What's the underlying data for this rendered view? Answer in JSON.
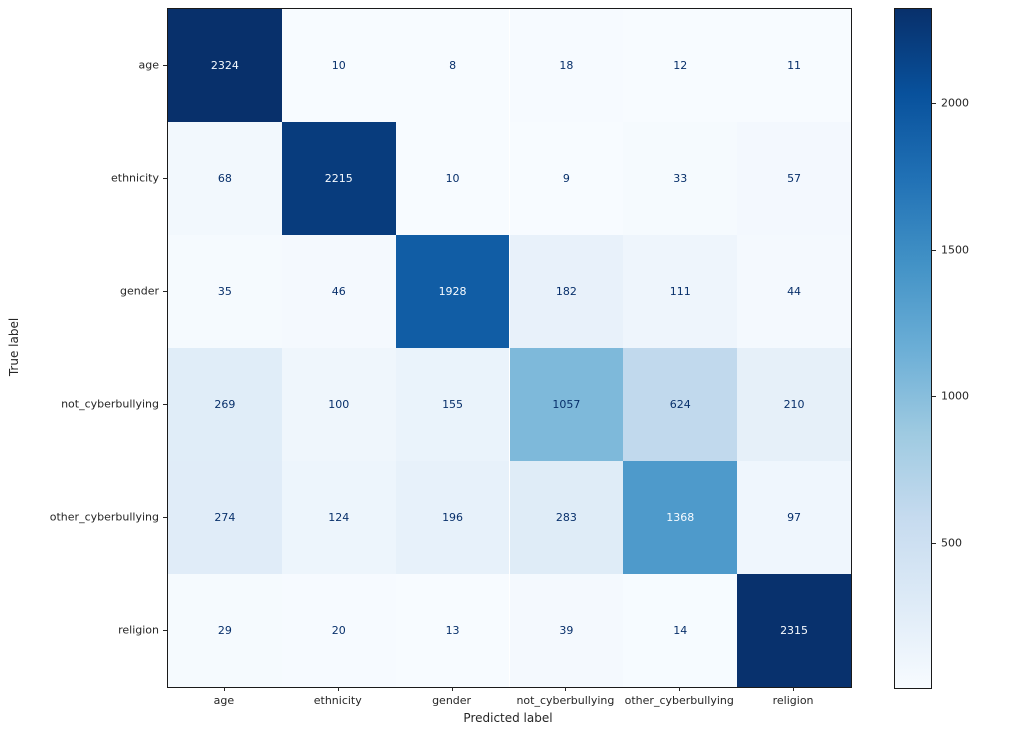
{
  "chart_data": {
    "type": "heatmap",
    "title": "",
    "xlabel": "Predicted label",
    "ylabel": "True label",
    "categories": [
      "age",
      "ethnicity",
      "gender",
      "not_cyberbullying",
      "other_cyberbullying",
      "religion"
    ],
    "matrix": [
      [
        2324,
        10,
        8,
        18,
        12,
        11
      ],
      [
        68,
        2215,
        10,
        9,
        33,
        57
      ],
      [
        35,
        46,
        1928,
        182,
        111,
        44
      ],
      [
        269,
        100,
        155,
        1057,
        624,
        210
      ],
      [
        274,
        124,
        196,
        283,
        1368,
        97
      ],
      [
        29,
        20,
        13,
        39,
        14,
        2315
      ]
    ],
    "vmin": 8,
    "vmax": 2324,
    "colormap": "Blues",
    "colorbar_ticks": [
      2000,
      1500,
      1000,
      500
    ],
    "colors": {
      "cmap_stops": [
        "#f7fbff",
        "#deebf7",
        "#c6dbef",
        "#9ecae1",
        "#6baed6",
        "#4292c6",
        "#2171b5",
        "#08519c",
        "#08306b"
      ],
      "axis_text": "#262626",
      "spine": "#1a1a1a"
    },
    "layout": {
      "grid": false,
      "colorbar_position": "right"
    }
  }
}
